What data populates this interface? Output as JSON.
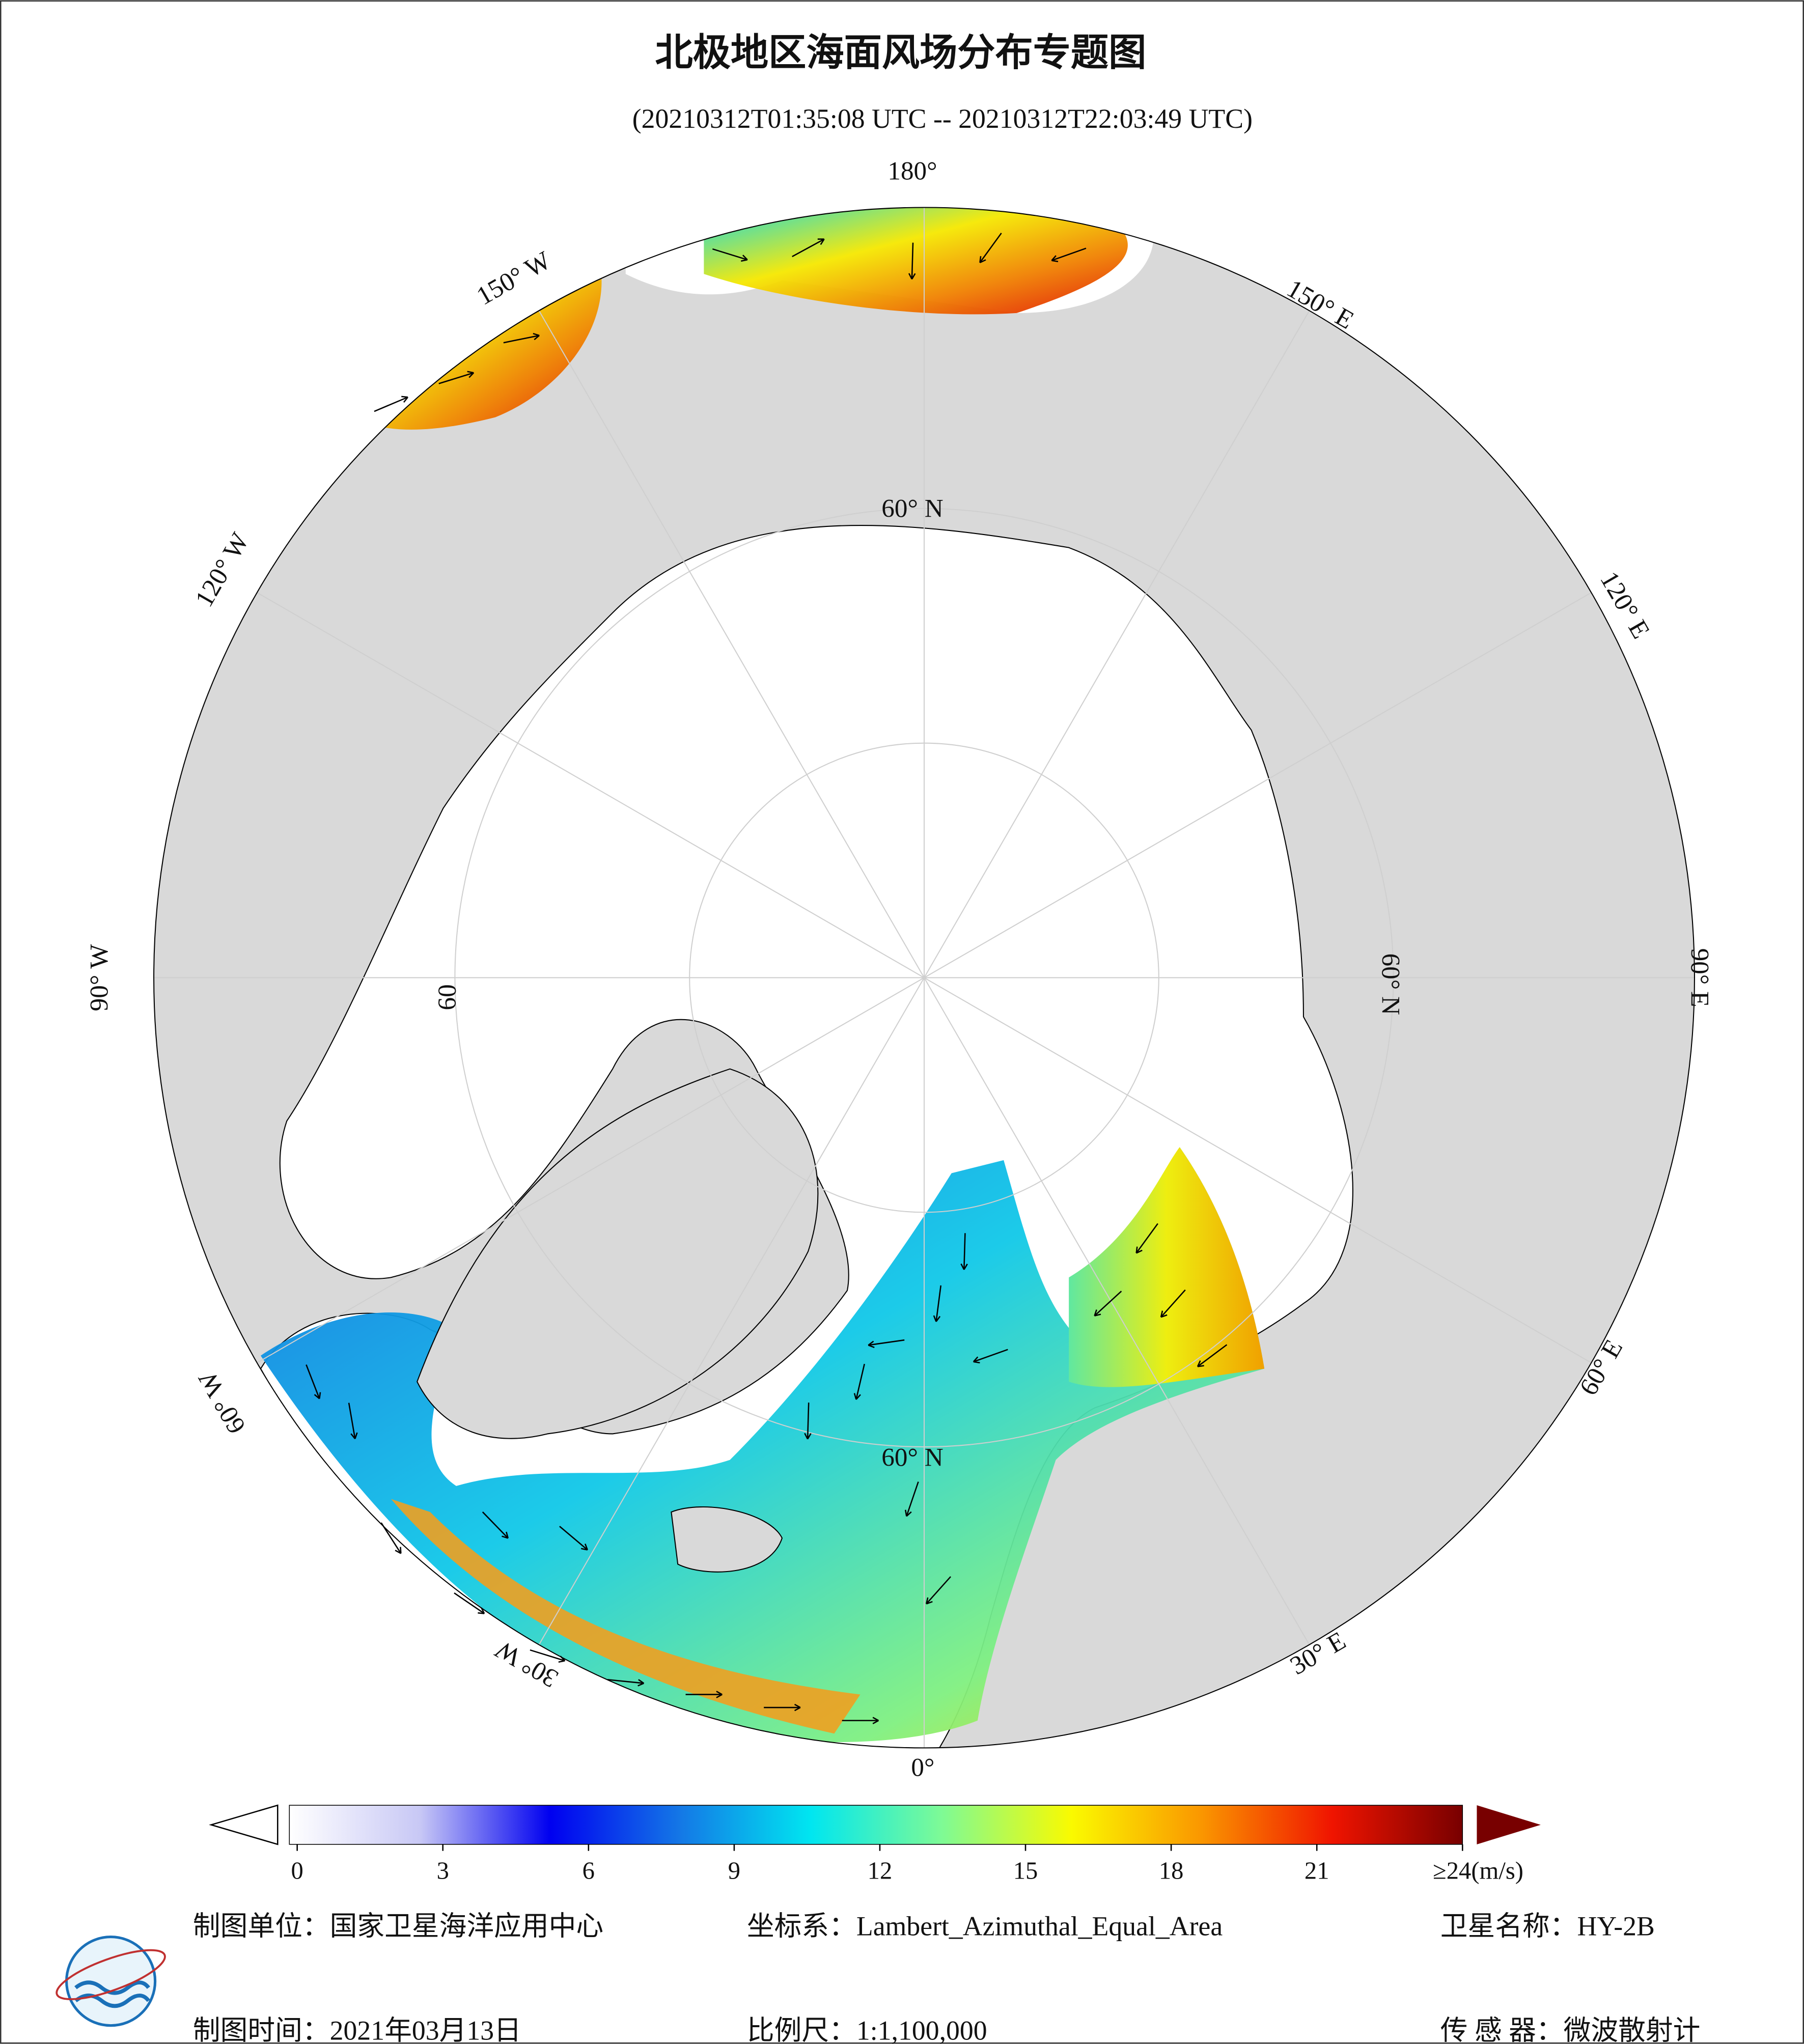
{
  "header": {
    "title": "北极地区海面风场分布专题图",
    "subtitle": "(20210312T01:35:08 UTC -- 20210312T22:03:49 UTC)"
  },
  "map": {
    "longitude_labels": [
      "180°",
      "150° E",
      "120° E",
      "90° E",
      "60° E",
      "30° E",
      "0°",
      "30° W",
      "60° W",
      "90° W",
      "120° W",
      "150° W"
    ],
    "latitude_labels": [
      "60° N",
      "60° N",
      "60",
      "60° N"
    ]
  },
  "colorbar": {
    "ticks": [
      0,
      3,
      6,
      9,
      12,
      15,
      18,
      21,
      {
        "value": 24,
        "label": "≥24(m/s)"
      }
    ],
    "colors": [
      "#ffffff",
      "#c8c8f5",
      "#0000f0",
      "#1478e6",
      "#00e6f0",
      "#7dfa96",
      "#fafa00",
      "#fa9600",
      "#f01400",
      "#780000"
    ]
  },
  "footer": {
    "unit": "制图单位：国家卫星海洋应用中心",
    "date": "制图时间：2021年03月13日",
    "projection": "坐标系：Lambert_Azimuthal_Equal_Area",
    "scale": "比例尺：1:1,100,000",
    "satellite": "卫星名称：HY-2B",
    "sensor": "传 感 器：微波散射计"
  }
}
